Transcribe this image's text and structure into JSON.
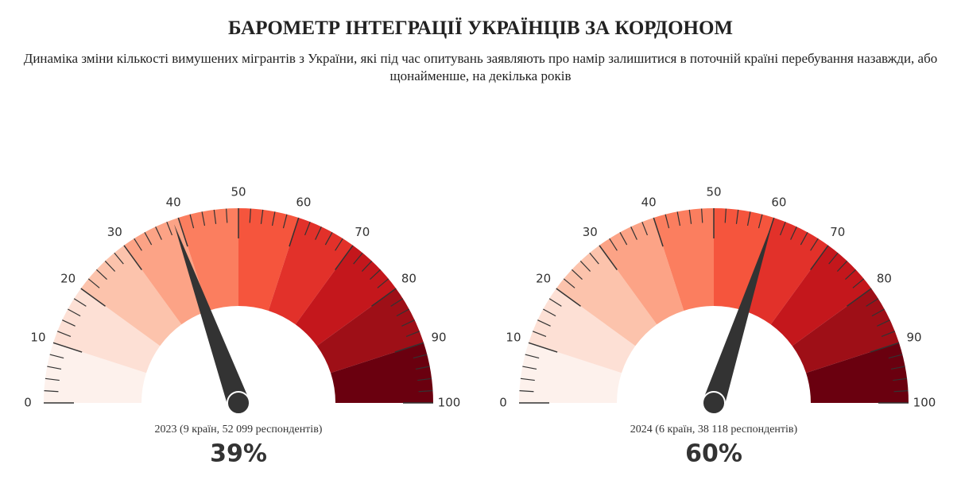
{
  "title": "БАРОМЕТР ІНТЕГРАЦІЇ УКРАЇНЦІВ ЗА КОРДОНОМ",
  "subtitle": "Динаміка зміни кількості вимушених мігрантів з України, які під час опитувань заявляють про намір залишитися в поточній країні перебування назавжди, або щонайменше, на декілька років",
  "chart_data": [
    {
      "type": "gauge",
      "title": "2023 (9 країн, 52 099 респондентів)",
      "values": [
        39
      ],
      "value_labels": [
        "39%"
      ],
      "ylim": [
        0,
        100
      ],
      "yticks": [
        0,
        10,
        20,
        30,
        40,
        50,
        60,
        70,
        80,
        90,
        100
      ],
      "band_colors": [
        "#fdf1ec",
        "#fde0d5",
        "#fcc3ac",
        "#fca386",
        "#fb7e5f",
        "#f5553d",
        "#e2312a",
        "#c4171c",
        "#9e0f17",
        "#6a000f"
      ],
      "needle_color": "#333333"
    },
    {
      "type": "gauge",
      "title": "2024 (6 країн, 38 118 респондентів)",
      "values": [
        60
      ],
      "value_labels": [
        "60%"
      ],
      "ylim": [
        0,
        100
      ],
      "yticks": [
        0,
        10,
        20,
        30,
        40,
        50,
        60,
        70,
        80,
        90,
        100
      ],
      "band_colors": [
        "#fdf1ec",
        "#fde0d5",
        "#fcc3ac",
        "#fca386",
        "#fb7e5f",
        "#f5553d",
        "#e2312a",
        "#c4171c",
        "#9e0f17",
        "#6a000f"
      ],
      "needle_color": "#333333"
    }
  ]
}
